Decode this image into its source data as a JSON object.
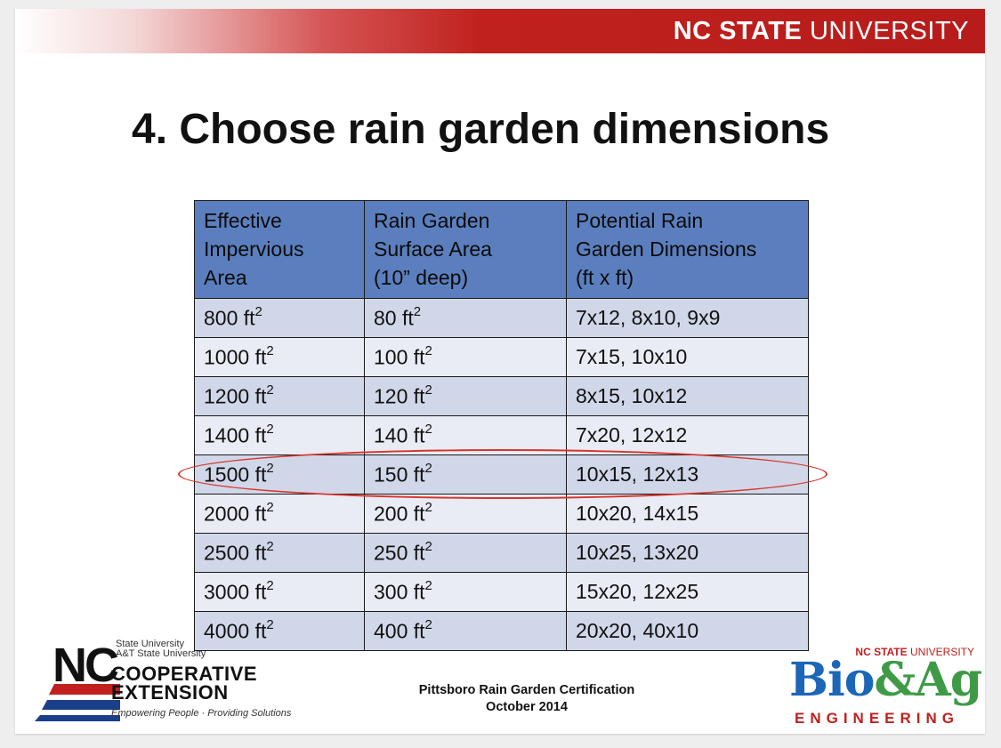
{
  "header": {
    "university_bold": "NC STATE",
    "university_light": "UNIVERSITY"
  },
  "slide": {
    "title": "4. Choose rain garden dimensions"
  },
  "table": {
    "headers": [
      [
        "Effective",
        "Impervious",
        "Area"
      ],
      [
        "Rain Garden",
        "Surface Area",
        "(10” deep)"
      ],
      [
        "Potential Rain",
        "Garden Dimensions",
        "(ft x ft)"
      ]
    ],
    "unit": "ft",
    "unit_exponent": "2",
    "rows": [
      {
        "area": "800",
        "surface": "80",
        "dims": "7x12, 8x10, 9x9"
      },
      {
        "area": "1000",
        "surface": "100",
        "dims": "7x15, 10x10"
      },
      {
        "area": "1200",
        "surface": "120",
        "dims": "8x15, 10x12"
      },
      {
        "area": "1400",
        "surface": "140",
        "dims": "7x20, 12x12"
      },
      {
        "area": "1500",
        "surface": "150",
        "dims": "10x15, 12x13"
      },
      {
        "area": "2000",
        "surface": "200",
        "dims": "10x20, 14x15"
      },
      {
        "area": "2500",
        "surface": "250",
        "dims": "10x25, 13x20"
      },
      {
        "area": "3000",
        "surface": "300",
        "dims": "15x20, 12x25"
      },
      {
        "area": "4000",
        "surface": "400",
        "dims": "20x20, 40x10"
      }
    ],
    "highlighted_row": 4
  },
  "footer": {
    "line1": "Pittsboro Rain Garden Certification",
    "line2": "October 2014"
  },
  "extension_logo": {
    "nc": "NC",
    "small1": "State University",
    "small2": "A&T State University",
    "cooperative": "COOPERATIVE",
    "extension": "EXTENSION",
    "tagline": "Empowering People · Providing Solutions"
  },
  "bioag_logo": {
    "small_bold": "NC STATE",
    "small_light": "UNIVERSITY",
    "bio": "Bio",
    "amp": "&",
    "ag": "Ag",
    "engineering": "ENGINEERING"
  },
  "colors": {
    "header_red": "#b71c1a",
    "table_header": "#5b7fbe",
    "row_dark": "#d0d7e8",
    "row_light": "#e9ecf4",
    "highlight": "#d8342c"
  }
}
